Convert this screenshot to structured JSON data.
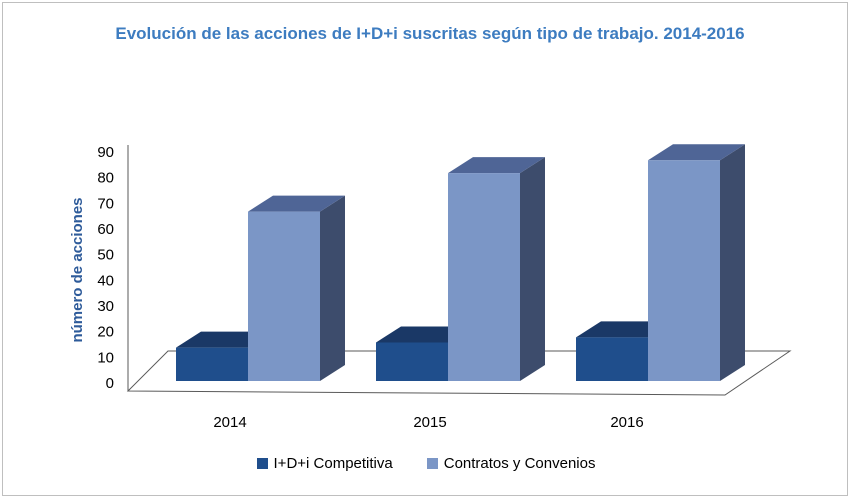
{
  "chart_data": {
    "type": "bar",
    "title": "Evolución de las acciones de I+D+i  suscritas según tipo de trabajo. 2014-2016",
    "xlabel": "",
    "ylabel": "número de acciones",
    "ylim": [
      0,
      90
    ],
    "yticks": [
      "0",
      "10",
      "20",
      "30",
      "40",
      "50",
      "60",
      "70",
      "80",
      "90"
    ],
    "categories": [
      "2014",
      "2015",
      "2016"
    ],
    "series": [
      {
        "name": "I+D+i Competitiva",
        "values": [
          13,
          15,
          17
        ],
        "colors": {
          "front": "#1f4e8c",
          "top": "#1a3866",
          "side": "#17325c"
        }
      },
      {
        "name": "Contratos y Convenios",
        "values": [
          66,
          81,
          86
        ],
        "colors": {
          "front": "#7b96c6",
          "top": "#4f6596",
          "side": "#3d4c6c"
        }
      }
    ],
    "legend_position": "bottom",
    "grid": false,
    "style": "3d-column"
  }
}
